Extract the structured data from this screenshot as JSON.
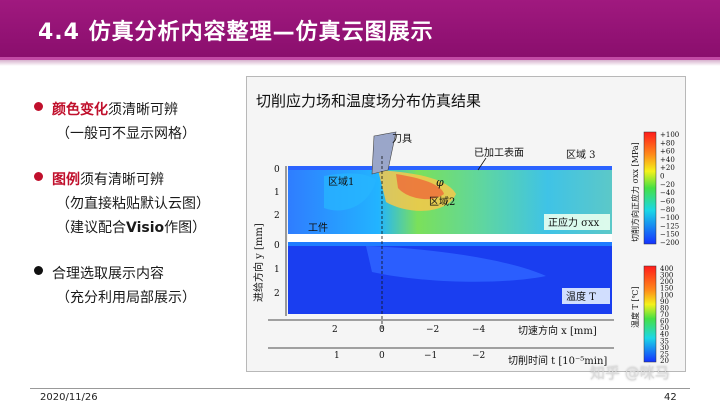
{
  "header": {
    "title": "4.4 仿真分析内容整理—仿真云图展示"
  },
  "bullets": [
    {
      "color": "#c0102c",
      "highlight": "颜色变化",
      "text": "须清晰可辨",
      "sub": "（一般可不显示网格）"
    },
    {
      "color": "#c0102c",
      "highlight": "图例",
      "text": "须有清晰可辨",
      "sub": "（勿直接粘贴默认云图）",
      "sub2_pre": "（建议配合",
      "sub2_bold": "Visio",
      "sub2_post": "作图）"
    },
    {
      "color": "#111111",
      "text": "合理选取展示内容",
      "sub": "（充分利用局部展示）"
    }
  ],
  "figure": {
    "title": "切削应力场和温度场分布仿真结果",
    "labels": {
      "tool": "刀具",
      "machined_surface": "已加工表面",
      "region1": "区域1",
      "region2": "区域2",
      "region3": "区域 3",
      "phi": "φ",
      "workpiece": "工件",
      "stress_panel": "正应力 σxx",
      "temp_panel": "温度 T",
      "yaxis": "进给方向 y [mm]",
      "xaxis_cut": "切速方向 x [mm]",
      "xaxis_time": "切削时间 t [10⁻⁵min]",
      "stress_cbar_label": "切削方向正应力 σxx [MPa]",
      "temp_cbar_label": "温度 T [℃]"
    },
    "y_ticks_top": [
      "0",
      "1",
      "2"
    ],
    "y_ticks_bottom": [
      "0",
      "1",
      "2"
    ],
    "x_ticks_cut": [
      "2",
      "0",
      "−2",
      "−4"
    ],
    "x_ticks_time": [
      "1",
      "0",
      "−1",
      "−2"
    ],
    "stress_cbar": [
      "+100",
      "+80",
      "+60",
      "+40",
      "+20",
      "0",
      "−20",
      "−40",
      "−60",
      "−80",
      "−100",
      "−125",
      "−150",
      "−200"
    ],
    "temp_cbar": [
      "400",
      "300",
      "200",
      "150",
      "100",
      "90",
      "80",
      "70",
      "60",
      "50",
      "40",
      "35",
      "30",
      "25",
      "20"
    ]
  },
  "footer": {
    "date": "2020/11/26",
    "page": "42",
    "watermark": "知乎 @咪马"
  }
}
